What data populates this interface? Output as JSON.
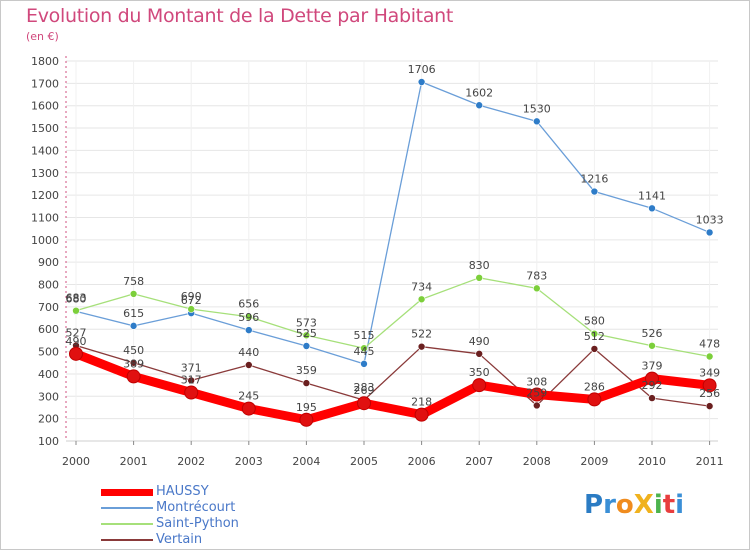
{
  "title": "Evolution du Montant de la Dette par Habitant",
  "subtitle": "(en €)",
  "logo": {
    "text": "ProXiti",
    "letters": [
      "P",
      "r",
      "o",
      "X",
      "i",
      "t",
      "i"
    ],
    "colors": [
      "#2b7cc4",
      "#3a8fd6",
      "#f08c1e",
      "#f0b21e",
      "#4db34d",
      "#e83e3e",
      "#3a8fd6"
    ]
  },
  "chart_data": {
    "type": "line",
    "x": [
      "2000",
      "2001",
      "2002",
      "2003",
      "2004",
      "2005",
      "2006",
      "2007",
      "2008",
      "2009",
      "2010",
      "2011"
    ],
    "yticks": [
      100,
      200,
      300,
      400,
      500,
      600,
      700,
      800,
      900,
      1000,
      1100,
      1200,
      1300,
      1400,
      1500,
      1600,
      1700,
      1800
    ],
    "ylim": [
      100,
      1800
    ],
    "grid": true,
    "legend_position": "bottom-left",
    "series": [
      {
        "name": "HAUSSY",
        "color": "#ff0000",
        "marker": "#e01010",
        "width": 9,
        "r": 6.5,
        "values": [
          490,
          389,
          317,
          245,
          195,
          269,
          218,
          350,
          308,
          286,
          379,
          349
        ]
      },
      {
        "name": "Montrécourt",
        "color": "#6a9ed8",
        "marker": "#2e7cc8",
        "width": 1.3,
        "r": 3.5,
        "values": [
          680,
          615,
          672,
          596,
          525,
          445,
          1706,
          1602,
          1530,
          1216,
          1141,
          1033
        ]
      },
      {
        "name": "Saint-Python",
        "color": "#a6e07a",
        "marker": "#7ccf3a",
        "width": 1.3,
        "r": 3.5,
        "values": [
          683,
          758,
          690,
          656,
          573,
          515,
          734,
          830,
          783,
          580,
          526,
          478
        ]
      },
      {
        "name": "Vertain",
        "color": "#8a3a3a",
        "marker": "#6a1f1f",
        "width": 1.3,
        "r": 3.5,
        "values": [
          527,
          450,
          371,
          440,
          359,
          283,
          522,
          490,
          259,
          512,
          292,
          256
        ]
      }
    ],
    "data_labels": [
      {
        "series": "HAUSSY",
        "labels": [
          "490",
          "389",
          "317",
          "245",
          "195",
          "269",
          "218",
          "350",
          "308",
          "286",
          "379",
          "349"
        ]
      },
      {
        "series": "Montrécourt",
        "labels": [
          "680",
          "615",
          "672",
          "596",
          "525",
          "445",
          "1706",
          "1602",
          "1530",
          "1216",
          "1141",
          "1033"
        ]
      },
      {
        "series": "Saint-Python",
        "labels": [
          "683",
          "758",
          "690",
          "656",
          "573",
          "515",
          "734",
          "830",
          "783",
          "580",
          "526",
          "478"
        ]
      },
      {
        "series": "Vertain",
        "labels": [
          "527",
          "450",
          "371",
          "440",
          "359",
          "283",
          "522",
          "490",
          "259",
          "512",
          "292",
          "256"
        ]
      }
    ]
  }
}
